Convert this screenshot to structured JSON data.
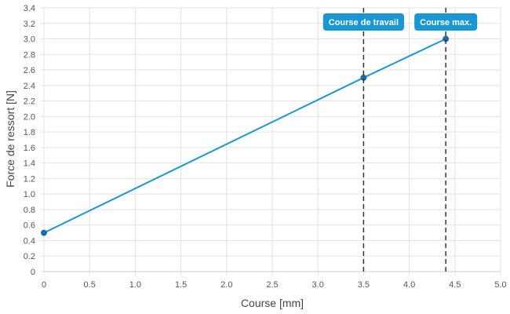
{
  "chart_data": {
    "type": "line",
    "xlabel": "Course [mm]",
    "ylabel": "Force de ressort [N]",
    "xlim": [
      0,
      5
    ],
    "ylim": [
      0,
      3.4
    ],
    "x_ticks": [
      "0",
      "0.5",
      "1.0",
      "1.5",
      "2.0",
      "2.5",
      "3.0",
      "3.5",
      "4.0",
      "4.5",
      "5.0"
    ],
    "y_ticks": [
      "0",
      "0.2",
      "0.4",
      "0.6",
      "0.8",
      "1.0",
      "1.2",
      "1.4",
      "1.6",
      "1.8",
      "2.0",
      "2.2",
      "2.4",
      "2.6",
      "2.8",
      "3.0",
      "3.2",
      "3.4"
    ],
    "grid": true,
    "series": [
      {
        "points": [
          {
            "x": 0,
            "y": 0.5
          },
          {
            "x": 3.5,
            "y": 2.5
          },
          {
            "x": 4.4,
            "y": 3.0
          }
        ],
        "color": "#1a96d2",
        "marker_color": "#1e6fa0"
      }
    ],
    "annotations": [
      {
        "x": 3.5,
        "label": "Course de travail"
      },
      {
        "x": 4.4,
        "label": "Course max."
      }
    ],
    "annotation_color": "#1a96d2",
    "grid_color": "#e2e2e2"
  }
}
